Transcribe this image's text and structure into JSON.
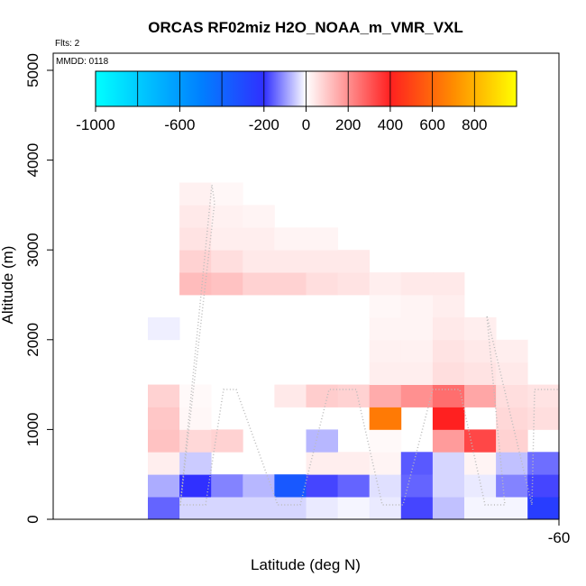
{
  "chart_data": {
    "type": "heatmap",
    "title": "ORCAS RF02miz H2O_NOAA_m_VMR_VXL",
    "xlabel": "Latitude (deg N)",
    "ylabel": "Altitude (m)",
    "flights_note": "Flts: 2",
    "date_note": "MMDD: 0118",
    "x_tick_label": "-60",
    "y_ticks": [
      0,
      1000,
      2000,
      3000,
      4000,
      5000
    ],
    "y_tick_labels": [
      "0",
      "1000",
      "2000",
      "3000",
      "4000",
      "5000"
    ],
    "ylim": [
      0,
      5200
    ],
    "colorbar": {
      "range": [
        -1000,
        1000
      ],
      "ticks": [
        -1000,
        -600,
        -200,
        0,
        200,
        400,
        600,
        800
      ],
      "tick_labels": [
        "-1000",
        "-600",
        "-200",
        "0",
        "200",
        "400",
        "600",
        "800"
      ],
      "stops": [
        {
          "v": -1000,
          "c": "#00FFFF"
        },
        {
          "v": -500,
          "c": "#0080FF"
        },
        {
          "v": -200,
          "c": "#3030FF"
        },
        {
          "v": 0,
          "c": "#FFFFFF"
        },
        {
          "v": 400,
          "c": "#FF2020"
        },
        {
          "v": 700,
          "c": "#FF8C00"
        },
        {
          "v": 1000,
          "c": "#FFFF00"
        }
      ]
    },
    "cell_height_m": 250,
    "cells": [
      {
        "col": 0,
        "alt": 0,
        "value": -150
      },
      {
        "col": 0,
        "alt": 250,
        "value": -80
      },
      {
        "col": 0,
        "alt": 500,
        "value": 30
      },
      {
        "col": 0,
        "alt": 750,
        "value": 110
      },
      {
        "col": 0,
        "alt": 1000,
        "value": 100
      },
      {
        "col": 0,
        "alt": 1250,
        "value": 80
      },
      {
        "col": 0,
        "alt": 2000,
        "value": -15
      },
      {
        "col": 1,
        "alt": 0,
        "value": -40
      },
      {
        "col": 1,
        "alt": 250,
        "value": -200
      },
      {
        "col": 1,
        "alt": 500,
        "value": -50
      },
      {
        "col": 1,
        "alt": 750,
        "value": 70
      },
      {
        "col": 1,
        "alt": 1000,
        "value": 15
      },
      {
        "col": 1,
        "alt": 1250,
        "value": 10
      },
      {
        "col": 1,
        "alt": 2500,
        "value": 120
      },
      {
        "col": 1,
        "alt": 2750,
        "value": 80
      },
      {
        "col": 1,
        "alt": 3000,
        "value": 50
      },
      {
        "col": 1,
        "alt": 3250,
        "value": 40
      },
      {
        "col": 1,
        "alt": 3500,
        "value": 25
      },
      {
        "col": 2,
        "alt": 0,
        "value": -40
      },
      {
        "col": 2,
        "alt": 250,
        "value": -120
      },
      {
        "col": 2,
        "alt": 750,
        "value": 80
      },
      {
        "col": 2,
        "alt": 2500,
        "value": 110
      },
      {
        "col": 2,
        "alt": 2750,
        "value": 60
      },
      {
        "col": 2,
        "alt": 3000,
        "value": 30
      },
      {
        "col": 2,
        "alt": 3250,
        "value": 25
      },
      {
        "col": 2,
        "alt": 3500,
        "value": 15
      },
      {
        "col": 3,
        "alt": 0,
        "value": -40
      },
      {
        "col": 3,
        "alt": 250,
        "value": -70
      },
      {
        "col": 3,
        "alt": 2500,
        "value": 80
      },
      {
        "col": 3,
        "alt": 2750,
        "value": 40
      },
      {
        "col": 3,
        "alt": 3000,
        "value": 30
      },
      {
        "col": 3,
        "alt": 3250,
        "value": 20
      },
      {
        "col": 4,
        "alt": 0,
        "value": -40
      },
      {
        "col": 4,
        "alt": 250,
        "value": -350
      },
      {
        "col": 4,
        "alt": 1250,
        "value": 40
      },
      {
        "col": 4,
        "alt": 2500,
        "value": 80
      },
      {
        "col": 4,
        "alt": 2750,
        "value": 40
      },
      {
        "col": 4,
        "alt": 3000,
        "value": 20
      },
      {
        "col": 5,
        "alt": 0,
        "value": -20
      },
      {
        "col": 5,
        "alt": 250,
        "value": -180
      },
      {
        "col": 5,
        "alt": 500,
        "value": 30
      },
      {
        "col": 5,
        "alt": 750,
        "value": -70
      },
      {
        "col": 5,
        "alt": 1250,
        "value": 90
      },
      {
        "col": 5,
        "alt": 2500,
        "value": 60
      },
      {
        "col": 5,
        "alt": 2750,
        "value": 40
      },
      {
        "col": 5,
        "alt": 3000,
        "value": 20
      },
      {
        "col": 6,
        "alt": 0,
        "value": -10
      },
      {
        "col": 6,
        "alt": 250,
        "value": -150
      },
      {
        "col": 6,
        "alt": 500,
        "value": 30
      },
      {
        "col": 6,
        "alt": 1250,
        "value": 80
      },
      {
        "col": 6,
        "alt": 2500,
        "value": 50
      },
      {
        "col": 6,
        "alt": 2750,
        "value": 40
      },
      {
        "col": 7,
        "alt": 0,
        "value": -20
      },
      {
        "col": 7,
        "alt": 250,
        "value": -30
      },
      {
        "col": 7,
        "alt": 500,
        "value": 20
      },
      {
        "col": 7,
        "alt": 750,
        "value": 10
      },
      {
        "col": 7,
        "alt": 1000,
        "value": 650
      },
      {
        "col": 7,
        "alt": 1250,
        "value": 150
      },
      {
        "col": 7,
        "alt": 1500,
        "value": 30
      },
      {
        "col": 7,
        "alt": 1750,
        "value": 25
      },
      {
        "col": 7,
        "alt": 2000,
        "value": 20
      },
      {
        "col": 7,
        "alt": 2250,
        "value": 15
      },
      {
        "col": 7,
        "alt": 2500,
        "value": 30
      },
      {
        "col": 8,
        "alt": 0,
        "value": -180
      },
      {
        "col": 8,
        "alt": 250,
        "value": -150
      },
      {
        "col": 8,
        "alt": 500,
        "value": -160
      },
      {
        "col": 8,
        "alt": 1250,
        "value": 200
      },
      {
        "col": 8,
        "alt": 1500,
        "value": 30
      },
      {
        "col": 8,
        "alt": 1750,
        "value": 25
      },
      {
        "col": 8,
        "alt": 2000,
        "value": 20
      },
      {
        "col": 8,
        "alt": 2250,
        "value": 20
      },
      {
        "col": 8,
        "alt": 2500,
        "value": 40
      },
      {
        "col": 9,
        "alt": 0,
        "value": -60
      },
      {
        "col": 9,
        "alt": 250,
        "value": -40
      },
      {
        "col": 9,
        "alt": 500,
        "value": -40
      },
      {
        "col": 9,
        "alt": 750,
        "value": 180
      },
      {
        "col": 9,
        "alt": 1000,
        "value": 400
      },
      {
        "col": 9,
        "alt": 1250,
        "value": 260
      },
      {
        "col": 9,
        "alt": 1500,
        "value": 60
      },
      {
        "col": 9,
        "alt": 1750,
        "value": 50
      },
      {
        "col": 9,
        "alt": 2000,
        "value": 40
      },
      {
        "col": 9,
        "alt": 2250,
        "value": 30
      },
      {
        "col": 9,
        "alt": 2500,
        "value": 40
      },
      {
        "col": 10,
        "alt": 0,
        "value": -10
      },
      {
        "col": 10,
        "alt": 250,
        "value": -20
      },
      {
        "col": 10,
        "alt": 500,
        "value": 20
      },
      {
        "col": 10,
        "alt": 750,
        "value": 330
      },
      {
        "col": 10,
        "alt": 1250,
        "value": 160
      },
      {
        "col": 10,
        "alt": 1500,
        "value": 50
      },
      {
        "col": 10,
        "alt": 1750,
        "value": 40
      },
      {
        "col": 10,
        "alt": 2000,
        "value": 30
      },
      {
        "col": 11,
        "alt": 0,
        "value": -10
      },
      {
        "col": 11,
        "alt": 250,
        "value": -120
      },
      {
        "col": 11,
        "alt": 500,
        "value": -60
      },
      {
        "col": 11,
        "alt": 750,
        "value": 80
      },
      {
        "col": 11,
        "alt": 1000,
        "value": 70
      },
      {
        "col": 11,
        "alt": 1250,
        "value": 60
      },
      {
        "col": 11,
        "alt": 1500,
        "value": 40
      },
      {
        "col": 11,
        "alt": 1750,
        "value": 30
      },
      {
        "col": 12,
        "alt": 0,
        "value": -250
      },
      {
        "col": 12,
        "alt": 250,
        "value": -180
      },
      {
        "col": 12,
        "alt": 500,
        "value": -140
      },
      {
        "col": 12,
        "alt": 1000,
        "value": 60
      },
      {
        "col": 12,
        "alt": 1250,
        "value": 50
      }
    ]
  }
}
